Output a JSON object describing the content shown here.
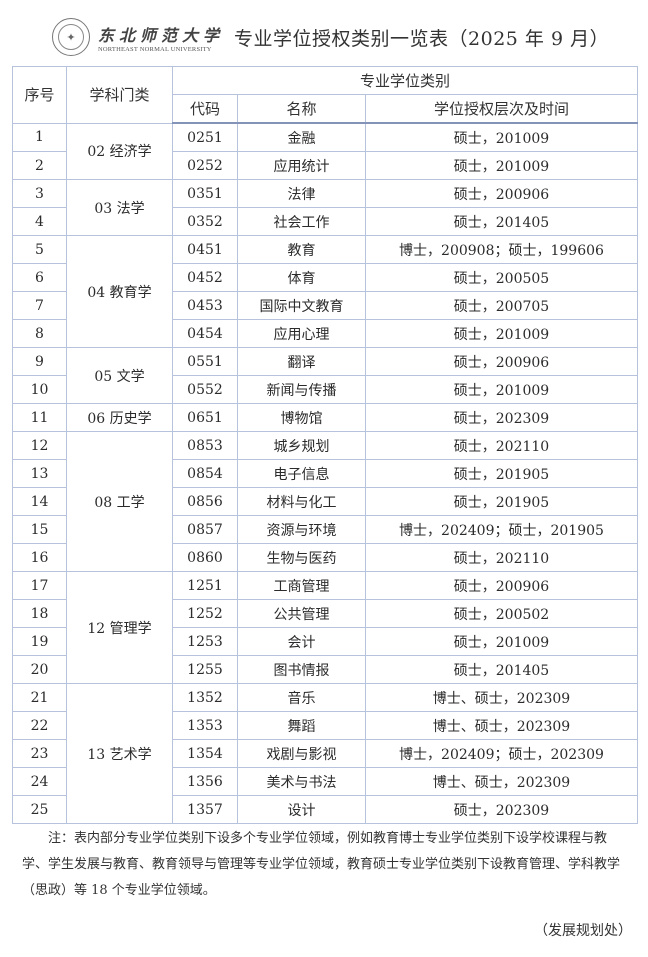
{
  "header": {
    "university_cn": "东北师范大学",
    "university_en": "NORTHEAST NORMAL UNIVERSITY",
    "title": "专业学位授权类别一览表（2025 年 9 月）"
  },
  "table": {
    "headers": {
      "seq": "序号",
      "discipline": "学科门类",
      "group": "专业学位类别",
      "code": "代码",
      "name": "名称",
      "level": "学位授权层次及时间"
    },
    "groups": [
      {
        "discipline": "02 经济学",
        "rows": [
          [
            "1",
            "0251",
            "金融",
            "硕士，201009"
          ],
          [
            "2",
            "0252",
            "应用统计",
            "硕士，201009"
          ]
        ]
      },
      {
        "discipline": "03 法学",
        "rows": [
          [
            "3",
            "0351",
            "法律",
            "硕士，200906"
          ],
          [
            "4",
            "0352",
            "社会工作",
            "硕士，201405"
          ]
        ]
      },
      {
        "discipline": "04 教育学",
        "rows": [
          [
            "5",
            "0451",
            "教育",
            "博士，200908；硕士，199606"
          ],
          [
            "6",
            "0452",
            "体育",
            "硕士，200505"
          ],
          [
            "7",
            "0453",
            "国际中文教育",
            "硕士，200705"
          ],
          [
            "8",
            "0454",
            "应用心理",
            "硕士，201009"
          ]
        ]
      },
      {
        "discipline": "05 文学",
        "rows": [
          [
            "9",
            "0551",
            "翻译",
            "硕士，200906"
          ],
          [
            "10",
            "0552",
            "新闻与传播",
            "硕士，201009"
          ]
        ]
      },
      {
        "discipline": "06 历史学",
        "rows": [
          [
            "11",
            "0651",
            "博物馆",
            "硕士，202309"
          ]
        ]
      },
      {
        "discipline": "08 工学",
        "rows": [
          [
            "12",
            "0853",
            "城乡规划",
            "硕士，202110"
          ],
          [
            "13",
            "0854",
            "电子信息",
            "硕士，201905"
          ],
          [
            "14",
            "0856",
            "材料与化工",
            "硕士，201905"
          ],
          [
            "15",
            "0857",
            "资源与环境",
            "博士，202409；硕士，201905"
          ],
          [
            "16",
            "0860",
            "生物与医药",
            "硕士，202110"
          ]
        ]
      },
      {
        "discipline": "12 管理学",
        "rows": [
          [
            "17",
            "1251",
            "工商管理",
            "硕士，200906"
          ],
          [
            "18",
            "1252",
            "公共管理",
            "硕士，200502"
          ],
          [
            "19",
            "1253",
            "会计",
            "硕士，201009"
          ],
          [
            "20",
            "1255",
            "图书情报",
            "硕士，201405"
          ]
        ]
      },
      {
        "discipline": "13 艺术学",
        "rows": [
          [
            "21",
            "1352",
            "音乐",
            "博士、硕士，202309"
          ],
          [
            "22",
            "1353",
            "舞蹈",
            "博士、硕士，202309"
          ],
          [
            "23",
            "1354",
            "戏剧与影视",
            "博士，202409；硕士，202309"
          ],
          [
            "24",
            "1356",
            "美术与书法",
            "博士、硕士，202309"
          ],
          [
            "25",
            "1357",
            "设计",
            "硕士，202309"
          ]
        ]
      }
    ]
  },
  "note": "注：表内部分专业学位类别下设多个专业学位领域，例如教育博士专业学位类别下设学校课程与教学、学生发展与教育、教育领导与管理等专业学位领域，教育硕士专业学位类别下设教育管理、学科教学（思政）等 18 个专业学位领域。",
  "signature": "（发展规划处）"
}
